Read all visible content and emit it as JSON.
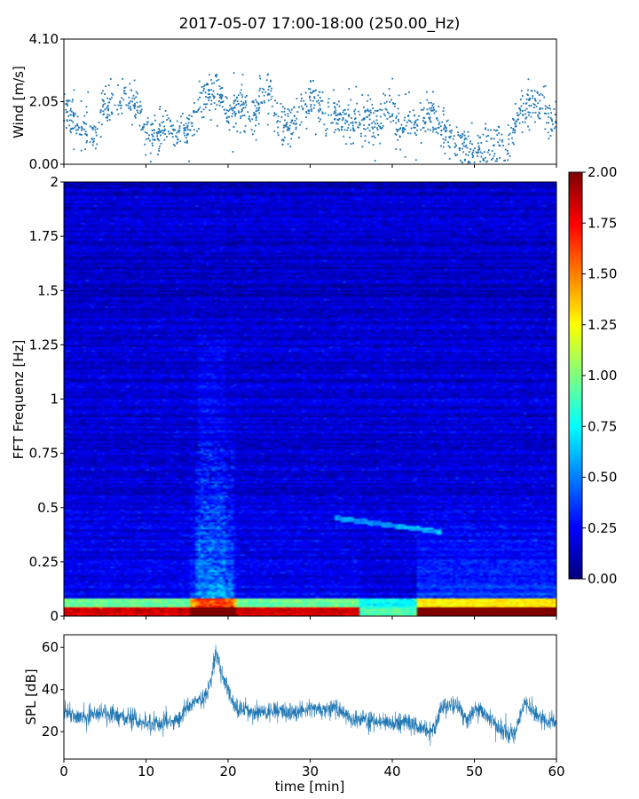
{
  "figure": {
    "title": "2017-05-07 17:00-18:00 (250.00_Hz)",
    "xlabel": "time [min]"
  },
  "chart_data": [
    {
      "type": "scatter",
      "name": "wind",
      "ylabel": "Wind [m/s]",
      "xlim": [
        0,
        60
      ],
      "ylim": [
        0,
        4.1
      ],
      "ytick_labels": [
        "0.00",
        "2.05",
        "4.10"
      ],
      "yticks": [
        0,
        2.05,
        4.1
      ],
      "color": "#1f77b4",
      "trend": {
        "x": [
          0,
          2,
          4,
          5,
          7,
          8,
          9,
          10,
          12,
          14,
          15,
          16,
          17,
          18,
          19,
          20,
          22,
          23,
          24,
          25,
          26,
          27,
          28,
          29,
          30,
          31,
          32,
          33,
          35,
          37,
          38,
          40,
          41,
          42,
          43,
          45,
          46,
          47,
          48,
          50,
          51,
          52,
          54,
          55,
          56,
          57,
          58,
          59,
          60
        ],
        "y": [
          1.7,
          1.3,
          1.0,
          1.9,
          2.0,
          2.3,
          1.9,
          0.9,
          1.1,
          1.0,
          1.0,
          1.6,
          2.1,
          2.4,
          2.3,
          1.7,
          1.9,
          1.4,
          2.3,
          2.4,
          1.5,
          1.3,
          1.2,
          1.7,
          2.2,
          2.0,
          1.8,
          1.6,
          1.4,
          1.5,
          1.3,
          1.9,
          1.0,
          1.4,
          1.3,
          1.6,
          1.2,
          0.9,
          0.6,
          0.5,
          0.5,
          0.6,
          0.7,
          1.3,
          1.9,
          2.1,
          1.9,
          1.5,
          1.3
        ]
      }
    },
    {
      "type": "heatmap",
      "name": "spectrogram",
      "ylabel": "FFT Frequenz [Hz]",
      "xlim": [
        0,
        60
      ],
      "ylim": [
        0,
        2
      ],
      "ytick_labels": [
        "0",
        "0.25",
        "0.5",
        "0.75",
        "1",
        "1.25",
        "1.5",
        "1.75",
        "2"
      ],
      "yticks": [
        0,
        0.25,
        0.5,
        0.75,
        1,
        1.25,
        1.5,
        1.75,
        2
      ],
      "colormap": "jet",
      "colorbar": {
        "range": [
          0,
          2
        ],
        "tick_labels": [
          "0.00",
          "0.25",
          "0.50",
          "0.75",
          "1.00",
          "1.25",
          "1.50",
          "1.75",
          "2.00"
        ],
        "ticks": [
          0,
          0.25,
          0.5,
          0.75,
          1,
          1.25,
          1.5,
          1.75,
          2
        ]
      }
    },
    {
      "type": "line",
      "name": "spl",
      "ylabel": "SPL [dB]",
      "xlim": [
        0,
        60
      ],
      "ylim": [
        7,
        66
      ],
      "ytick_labels": [
        "20",
        "40",
        "60"
      ],
      "yticks": [
        20,
        40,
        60
      ],
      "xtick_labels": [
        "0",
        "10",
        "20",
        "30",
        "40",
        "50",
        "60"
      ],
      "xticks": [
        0,
        10,
        20,
        30,
        40,
        50,
        60
      ],
      "color": "#1f77b4",
      "trend": {
        "x": [
          0,
          2,
          4,
          6,
          8,
          10,
          12,
          14,
          15,
          16,
          17,
          18,
          18.5,
          19,
          20,
          21,
          22,
          24,
          26,
          28,
          30,
          32,
          33,
          35,
          37,
          40,
          42,
          43,
          44,
          45,
          46,
          47,
          48,
          49,
          50,
          51,
          52,
          53,
          54,
          55,
          56,
          57,
          58,
          59,
          60
        ],
        "y": [
          29,
          27,
          29,
          28,
          26,
          24,
          24,
          26,
          31,
          34,
          35,
          45,
          57,
          50,
          39,
          31,
          30,
          29,
          30,
          28,
          31,
          30,
          32,
          26,
          25,
          24,
          24,
          22,
          21,
          20,
          31,
          32,
          33,
          25,
          30,
          29,
          27,
          21,
          19,
          20,
          33,
          31,
          27,
          26,
          25
        ]
      }
    }
  ]
}
